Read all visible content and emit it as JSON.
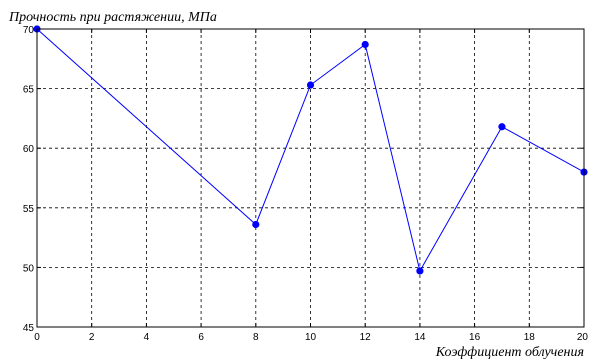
{
  "chart_data": {
    "type": "line",
    "ylabel": "Прочность при растяжении, МПа",
    "xlabel": "Коэффициент облучения",
    "xlim": [
      0,
      20
    ],
    "ylim": [
      45,
      70
    ],
    "x_ticks": [
      0,
      2,
      4,
      6,
      8,
      10,
      12,
      14,
      16,
      18,
      20
    ],
    "y_ticks": [
      45,
      50,
      55,
      60,
      65,
      70
    ],
    "x_tick_labels": [
      "0",
      "2",
      "4",
      "6",
      "8",
      "10",
      "12",
      "14",
      "16",
      "18",
      "20"
    ],
    "y_tick_labels": [
      "45",
      "50",
      "55",
      "60",
      "65",
      "70"
    ],
    "grid": true,
    "grid_style": "dashed",
    "series": [
      {
        "color": "#0000ff",
        "marker": "circle",
        "x": [
          0,
          8,
          10,
          12,
          14,
          17,
          20
        ],
        "y": [
          70,
          53.6,
          65.3,
          68.7,
          49.7,
          61.8,
          58
        ]
      }
    ]
  }
}
